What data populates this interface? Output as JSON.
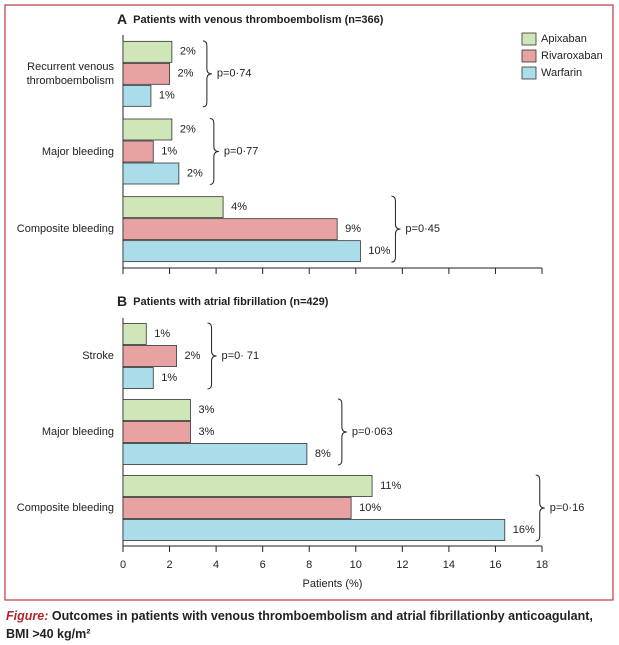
{
  "chart_data": [
    {
      "type": "bar",
      "panel": "A",
      "title": "Patients with venous thromboembolism (n=366)",
      "categories": [
        "Recurrent venous thromboembolism",
        "Major bleeding",
        "Composite bleeding"
      ],
      "series": [
        {
          "name": "Apixaban",
          "color": "#cfe6b8",
          "values": [
            2.1,
            2.1,
            4.3
          ],
          "value_labels": [
            "2%",
            "2%",
            "4%"
          ]
        },
        {
          "name": "Rivaroxaban",
          "color": "#e8a2a2",
          "values": [
            2.0,
            1.3,
            9.2
          ],
          "value_labels": [
            "2%",
            "1%",
            "9%"
          ]
        },
        {
          "name": "Warfarin",
          "color": "#aadcea",
          "values": [
            1.2,
            2.4,
            10.2
          ],
          "value_labels": [
            "1%",
            "2%",
            "10%"
          ]
        }
      ],
      "annotations": [
        "p=0·74",
        "p=0·77",
        "p=0·45"
      ],
      "xlim": [
        0,
        18
      ],
      "xticks": [
        0,
        2,
        4,
        6,
        8,
        10,
        12,
        14,
        16,
        18
      ],
      "show_tick_labels": false,
      "legend": "upper right"
    },
    {
      "type": "bar",
      "panel": "B",
      "title": "Patients with atrial fibrillation (n=429)",
      "categories": [
        "Stroke",
        "Major bleeding",
        "Composite bleeding"
      ],
      "series": [
        {
          "color": "#cfe6b8",
          "values": [
            1.0,
            2.9,
            10.7
          ],
          "value_labels": [
            "1%",
            "3%",
            "11%"
          ]
        },
        {
          "color": "#e8a2a2",
          "values": [
            2.3,
            2.9,
            9.8
          ],
          "value_labels": [
            "2%",
            "3%",
            "10%"
          ]
        },
        {
          "color": "#aadcea",
          "values": [
            1.3,
            7.9,
            16.4
          ],
          "value_labels": [
            "1%",
            "8%",
            "16%"
          ]
        }
      ],
      "annotations": [
        "p=0· 71",
        "p=0·063",
        "p=0·16"
      ],
      "xlim": [
        0,
        18
      ],
      "xticks": [
        0,
        2,
        4,
        6,
        8,
        10,
        12,
        14,
        16,
        18
      ],
      "show_tick_labels": true,
      "xlabel": "Patients (%)"
    }
  ],
  "figure_caption": {
    "label": "Figure:",
    "text": "Outcomes in patients with venous thromboembolism and atrial fibrillationby anticoagulant, BMI >40 kg/m²"
  }
}
